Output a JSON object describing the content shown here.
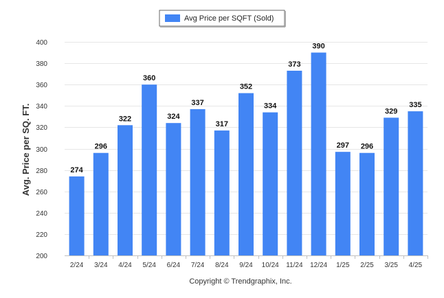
{
  "chart_data": {
    "type": "bar",
    "categories": [
      "2/24",
      "3/24",
      "4/24",
      "5/24",
      "6/24",
      "7/24",
      "8/24",
      "9/24",
      "10/24",
      "11/24",
      "12/24",
      "1/25",
      "2/25",
      "3/25",
      "4/25"
    ],
    "series": [
      {
        "name": "Avg Price per SQFT (Sold)",
        "values": [
          274,
          296,
          322,
          360,
          324,
          337,
          317,
          352,
          334,
          373,
          390,
          297,
          296,
          329,
          335
        ]
      }
    ],
    "ylabel": "Avg. Price per SQ. FT.",
    "xlabel": "",
    "ylim": [
      200,
      400
    ],
    "yticks": [
      200,
      220,
      240,
      260,
      280,
      300,
      320,
      340,
      360,
      380,
      400
    ],
    "grid": true,
    "legend_position": "top-center",
    "bar_color": "#4285f4",
    "footer": "Copyright © Trendgraphix, Inc."
  }
}
